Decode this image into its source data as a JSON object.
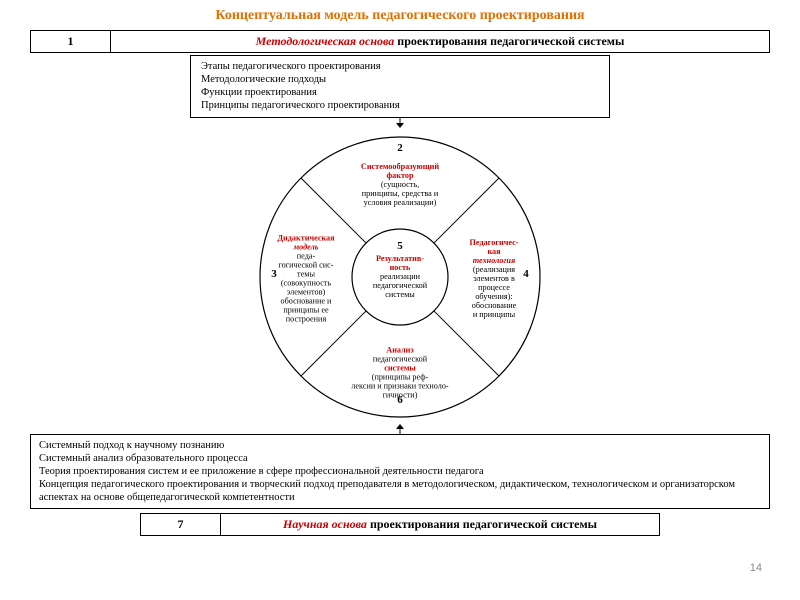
{
  "title": {
    "text": "Концептуальная модель педагогического проектирования",
    "color": "#e07000"
  },
  "box1": {
    "num": "1",
    "label_em": "Методологическая основа",
    "label_rest": " проектирования педагогической системы"
  },
  "sub1": {
    "lines": [
      "Этапы педагогического проектирования",
      "Методологические подходы",
      "Функции проектирования",
      "Принципы педагогического проектирования"
    ]
  },
  "wheel": {
    "outer_r": 140,
    "inner_r": 48,
    "stroke": "#000000",
    "center": {
      "num": "5",
      "lines": [
        {
          "t": "Результатив-",
          "red": true
        },
        {
          "t": "ность",
          "red": true
        },
        {
          "t": "реализации"
        },
        {
          "t": "педагогической"
        },
        {
          "t": "системы"
        }
      ]
    },
    "segments": [
      {
        "num": "2",
        "lines": [
          {
            "t": "Системообразующий",
            "red": true
          },
          {
            "t": "фактор",
            "red": true
          },
          {
            "t": "(сущность,"
          },
          {
            "t": "принципы, средства и"
          },
          {
            "t": "условия реализации)"
          }
        ]
      },
      {
        "num": "4",
        "lines": [
          {
            "t": "Педагогичес-",
            "red": true
          },
          {
            "t": "кая",
            "red": true
          },
          {
            "t": "технология",
            "red": true,
            "it": true
          },
          {
            "t": "(реализация"
          },
          {
            "t": "элементов в"
          },
          {
            "t": "процессе"
          },
          {
            "t": "обучения):"
          },
          {
            "t": "обоснование"
          },
          {
            "t": "и принципы"
          }
        ]
      },
      {
        "num": "6",
        "lines": [
          {
            "t": "Анализ",
            "red": true
          },
          {
            "t": "педагогической"
          },
          {
            "t": "системы",
            "red": true
          },
          {
            "t": "(принципы реф-"
          },
          {
            "t": "лексии и признаки техноло-"
          },
          {
            "t": "гичности)"
          }
        ]
      },
      {
        "num": "3",
        "lines": [
          {
            "t": "Дидактическая",
            "red": true
          },
          {
            "t": "модель",
            "red": true,
            "it": true
          },
          {
            "t": "педа-"
          },
          {
            "t": "гогической сис-"
          },
          {
            "t": "темы"
          },
          {
            "t": "(совокупность"
          },
          {
            "t": "элементов)"
          },
          {
            "t": "обоснование и"
          },
          {
            "t": "принципы ее"
          },
          {
            "t": "построения"
          }
        ]
      }
    ]
  },
  "bottom_box": {
    "lines": [
      "Системный подход к научному познанию",
      "Системный анализ образовательного процесса",
      "Теория проектирования систем и ее  приложение в сфере профессиональной деятельности  педагога",
      "Концепция педагогического проектирования и творческий подход преподавателя в методологическом, дидактическом, технологическом  и организаторском аспектах на основе общепедагогической компетентности"
    ]
  },
  "box7": {
    "num": "7",
    "label_em": "Научная основа",
    "label_rest": " проектирования педагогической системы"
  },
  "page_number": "14",
  "colors": {
    "title": "#e07000",
    "red": "#cc0000",
    "border": "#000000",
    "bg": "#ffffff"
  }
}
